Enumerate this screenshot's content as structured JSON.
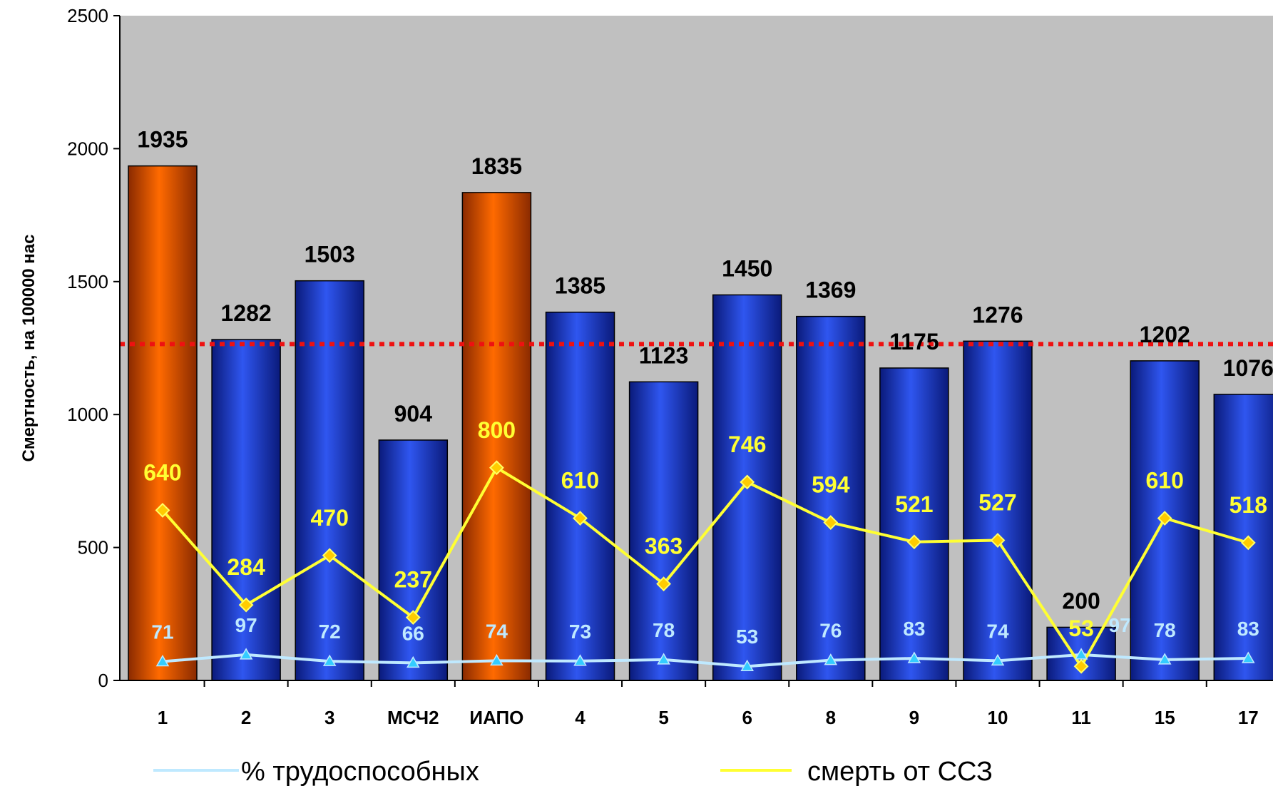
{
  "chart_data": {
    "type": "bar",
    "categories": [
      "1",
      "2",
      "3",
      "МСЧ2",
      "ИАПО",
      "4",
      "5",
      "6",
      "8",
      "9",
      "10",
      "11",
      "15",
      "17"
    ],
    "ylabel": "Смертность, на 100000 нас",
    "ylim": [
      0,
      2500
    ],
    "yticks": [
      0,
      500,
      1000,
      1500,
      2000,
      2500
    ],
    "reference_line": 1265,
    "bars": {
      "values": [
        1935,
        1282,
        1503,
        904,
        1835,
        1385,
        1123,
        1450,
        1369,
        1175,
        1276,
        200,
        1202,
        1076
      ],
      "highlight_color": "#ff6a00",
      "color": "#1f3fd9",
      "highlighted": [
        "1",
        "ИАПО"
      ]
    },
    "series": [
      {
        "name": "% трудоспособных",
        "values": [
          71,
          97,
          72,
          66,
          74,
          73,
          78,
          53,
          76,
          83,
          74,
          97,
          78,
          83
        ],
        "color": "#bfe9ff"
      },
      {
        "name": "смерть от ССЗ",
        "values": [
          640,
          284,
          470,
          237,
          800,
          610,
          363,
          746,
          594,
          521,
          527,
          53,
          610,
          518
        ],
        "color": "#ffff33"
      }
    ],
    "plot_background": "#c0c0c0",
    "reference_color": "#ee1111",
    "grid": false,
    "legend_position": "bottom"
  }
}
